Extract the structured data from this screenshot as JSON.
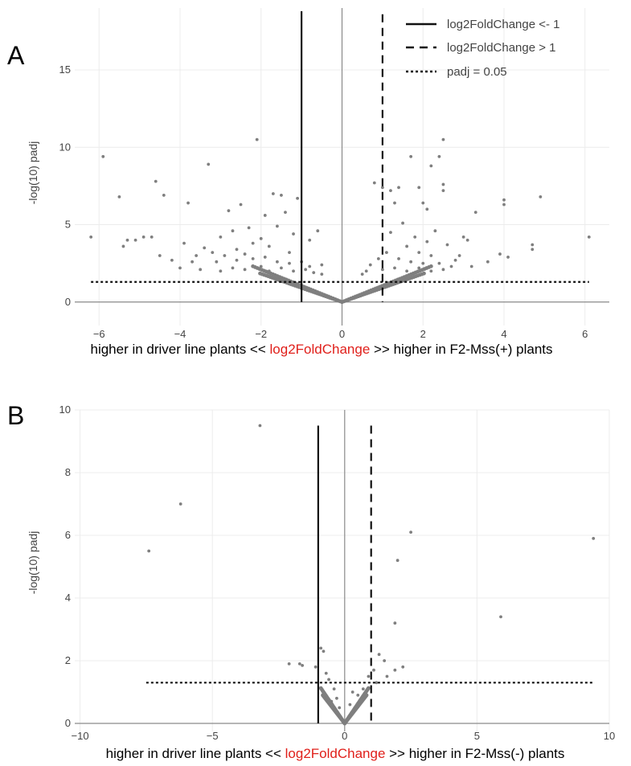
{
  "colors": {
    "point": "#7f7f7f",
    "threshold": "#111111",
    "zero_line": "#8a8a8a",
    "grid": "#ececec",
    "highlight": "#e0201b"
  },
  "legend": {
    "items": [
      {
        "label": "log2FoldChange <- 1",
        "dash": "solid"
      },
      {
        "label": "log2FoldChange > 1",
        "dash": "dashed"
      },
      {
        "label": "padj = 0.05",
        "dash": "dotted"
      }
    ]
  },
  "chart_data": [
    {
      "type": "scatter",
      "panel_label": "A",
      "ylabel": "-log(10) padj",
      "xlabel_parts": [
        "higher in driver line plants << ",
        "log2FoldChange",
        " >> higher in F2-Mss(+) plants"
      ],
      "xlim": [
        -6.6,
        6.6
      ],
      "ylim": [
        -1,
        19
      ],
      "x_ticks": [
        -6,
        -4,
        -2,
        0,
        2,
        4,
        6
      ],
      "x_tick_labels": [
        "−6",
        "−4",
        "−2",
        "0",
        "2",
        "4",
        "6"
      ],
      "y_ticks": [
        0,
        5,
        10,
        15
      ],
      "y_tick_labels": [
        "0",
        "5",
        "10",
        "15"
      ],
      "grid": true,
      "legend_position": "top-right",
      "thresholds": {
        "left_fc": -1,
        "right_fc": 1,
        "left_top": 18.8,
        "right_top": 18.6,
        "padj_y": 1.3,
        "padj_x": [
          -6.2,
          6.1
        ]
      },
      "points": [
        [
          -6.2,
          4.2
        ],
        [
          -5.9,
          9.4
        ],
        [
          -5.5,
          6.8
        ],
        [
          -5.4,
          3.6
        ],
        [
          -5.3,
          4.0
        ],
        [
          -5.1,
          4.0
        ],
        [
          -4.9,
          4.2
        ],
        [
          -4.7,
          4.2
        ],
        [
          -4.6,
          7.8
        ],
        [
          -4.5,
          3.0
        ],
        [
          -4.4,
          6.9
        ],
        [
          -3.9,
          3.8
        ],
        [
          -3.8,
          6.4
        ],
        [
          -3.6,
          3.0
        ],
        [
          -3.4,
          3.5
        ],
        [
          -3.3,
          8.9
        ],
        [
          -3.2,
          3.2
        ],
        [
          -3.0,
          4.2
        ],
        [
          -2.9,
          3.0
        ],
        [
          -2.8,
          5.9
        ],
        [
          -2.7,
          4.6
        ],
        [
          -2.6,
          3.4
        ],
        [
          -2.5,
          6.3
        ],
        [
          -2.4,
          3.1
        ],
        [
          -2.3,
          4.8
        ],
        [
          -2.2,
          3.8
        ],
        [
          -2.1,
          10.5
        ],
        [
          -2.0,
          4.1
        ],
        [
          -1.9,
          5.6
        ],
        [
          -1.8,
          3.6
        ],
        [
          -1.7,
          7.0
        ],
        [
          -1.6,
          4.9
        ],
        [
          -1.5,
          6.9
        ],
        [
          -1.4,
          5.8
        ],
        [
          -1.3,
          3.2
        ],
        [
          -1.2,
          4.4
        ],
        [
          -1.1,
          6.7
        ],
        [
          -0.8,
          4.0
        ],
        [
          -0.6,
          4.6
        ],
        [
          -0.5,
          2.4
        ],
        [
          -4.2,
          2.7
        ],
        [
          -3.7,
          2.6
        ],
        [
          -3.1,
          2.6
        ],
        [
          -2.6,
          2.7
        ],
        [
          -2.2,
          2.8
        ],
        [
          -1.9,
          2.9
        ],
        [
          -1.6,
          2.6
        ],
        [
          -1.3,
          2.5
        ],
        [
          -1.0,
          2.6
        ],
        [
          -0.8,
          2.3
        ],
        [
          -4.0,
          2.2
        ],
        [
          -3.5,
          2.1
        ],
        [
          -3.0,
          2.0
        ],
        [
          -2.7,
          2.2
        ],
        [
          -2.4,
          2.1
        ],
        [
          -2.0,
          2.3
        ],
        [
          -1.8,
          2.0
        ],
        [
          -1.5,
          2.2
        ],
        [
          -1.2,
          2.0
        ],
        [
          -0.9,
          2.1
        ],
        [
          -0.7,
          1.9
        ],
        [
          -0.5,
          1.8
        ],
        [
          6.1,
          4.2
        ],
        [
          4.9,
          6.8
        ],
        [
          4.7,
          3.7
        ],
        [
          4.7,
          3.4
        ],
        [
          4.0,
          6.6
        ],
        [
          4.0,
          6.3
        ],
        [
          3.9,
          3.1
        ],
        [
          3.3,
          5.8
        ],
        [
          3.1,
          4.0
        ],
        [
          3.0,
          4.2
        ],
        [
          2.9,
          3.0
        ],
        [
          2.8,
          2.7
        ],
        [
          2.5,
          10.5
        ],
        [
          2.4,
          9.4
        ],
        [
          2.5,
          7.6
        ],
        [
          2.5,
          7.2
        ],
        [
          2.2,
          8.8
        ],
        [
          2.1,
          6.0
        ],
        [
          2.0,
          6.4
        ],
        [
          1.9,
          7.4
        ],
        [
          1.7,
          9.4
        ],
        [
          1.4,
          7.4
        ],
        [
          1.2,
          7.2
        ],
        [
          1.3,
          6.4
        ],
        [
          1.2,
          4.5
        ],
        [
          1.5,
          5.1
        ],
        [
          1.8,
          4.2
        ],
        [
          2.1,
          3.9
        ],
        [
          2.3,
          4.6
        ],
        [
          2.6,
          3.7
        ],
        [
          0.8,
          7.7
        ],
        [
          1.0,
          7.4
        ],
        [
          1.6,
          3.6
        ],
        [
          1.9,
          3.2
        ],
        [
          2.2,
          3.0
        ],
        [
          1.1,
          3.2
        ],
        [
          0.9,
          2.8
        ],
        [
          0.7,
          2.4
        ],
        [
          1.4,
          2.8
        ],
        [
          1.7,
          2.6
        ],
        [
          2.0,
          2.5
        ],
        [
          2.4,
          2.5
        ],
        [
          2.7,
          2.3
        ],
        [
          3.2,
          2.3
        ],
        [
          3.6,
          2.6
        ],
        [
          4.1,
          2.9
        ],
        [
          0.6,
          2.0
        ],
        [
          1.0,
          2.1
        ],
        [
          1.3,
          2.2
        ],
        [
          1.6,
          2.0
        ],
        [
          1.9,
          2.2
        ],
        [
          2.2,
          2.0
        ],
        [
          2.5,
          2.1
        ],
        [
          0.5,
          1.8
        ]
      ]
    },
    {
      "type": "scatter",
      "panel_label": "B",
      "ylabel": "-log(10) padj",
      "xlabel_parts": [
        "higher in driver line plants << ",
        "log2FoldChange",
        " >> higher in F2-Mss(-) plants"
      ],
      "xlim": [
        -10.2,
        10
      ],
      "ylim": [
        0,
        10
      ],
      "x_ticks": [
        -10,
        -5,
        0,
        5,
        10
      ],
      "x_tick_labels": [
        "−10",
        "−5",
        "0",
        "5",
        "10"
      ],
      "y_ticks": [
        0,
        2,
        4,
        6,
        8,
        10
      ],
      "y_tick_labels": [
        "0",
        "2",
        "4",
        "6",
        "8",
        "10"
      ],
      "grid": true,
      "thresholds": {
        "left_fc": -1,
        "right_fc": 1,
        "left_top": 9.5,
        "right_top": 9.5,
        "padj_y": 1.3,
        "padj_x": [
          -7.5,
          9.4
        ]
      },
      "points": [
        [
          -3.2,
          9.5
        ],
        [
          -6.2,
          7.0
        ],
        [
          -7.4,
          5.5
        ],
        [
          9.4,
          5.9
        ],
        [
          2.5,
          6.1
        ],
        [
          2.0,
          5.2
        ],
        [
          5.9,
          3.4
        ],
        [
          1.9,
          3.2
        ],
        [
          -2.1,
          1.9
        ],
        [
          -1.7,
          1.9
        ],
        [
          -1.6,
          1.85
        ],
        [
          -0.9,
          2.4
        ],
        [
          -0.8,
          2.3
        ],
        [
          -1.1,
          1.8
        ],
        [
          1.3,
          2.2
        ],
        [
          1.5,
          2.0
        ],
        [
          1.1,
          1.7
        ],
        [
          0.9,
          1.5
        ],
        [
          2.2,
          1.8
        ],
        [
          1.9,
          1.7
        ],
        [
          1.6,
          1.5
        ],
        [
          0.7,
          1.1
        ],
        [
          0.5,
          0.9
        ],
        [
          -0.4,
          1.1
        ],
        [
          -0.6,
          1.4
        ],
        [
          -0.3,
          0.8
        ],
        [
          0.2,
          0.6
        ],
        [
          -0.2,
          0.5
        ],
        [
          0.3,
          1.0
        ],
        [
          -0.5,
          0.7
        ],
        [
          1.2,
          1.3
        ],
        [
          -0.7,
          1.6
        ]
      ]
    }
  ]
}
